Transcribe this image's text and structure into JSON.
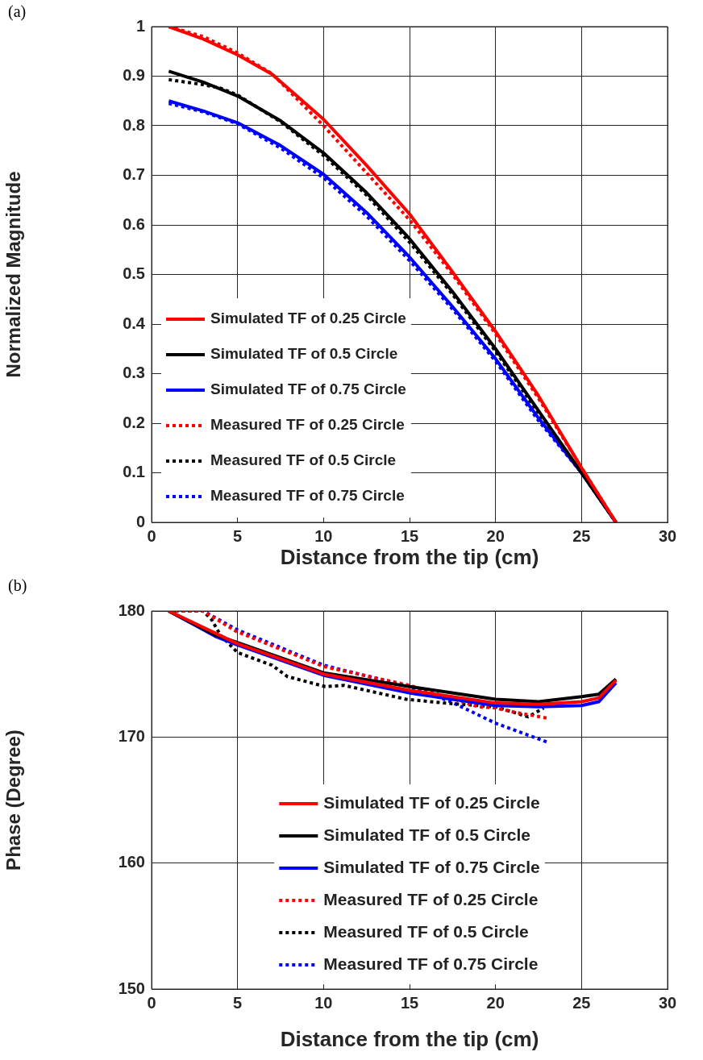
{
  "chart_data": [
    {
      "type": "line",
      "xlabel": "Distance from the tip (cm)",
      "ylabel": "Normalized Magnitude",
      "annotations": [
        "(a)"
      ],
      "xlim": [
        0,
        30
      ],
      "xticks": [
        0,
        5,
        10,
        15,
        20,
        25,
        30
      ],
      "ylim": [
        0,
        1
      ],
      "yticks": [
        0,
        0.1,
        0.2,
        0.3,
        0.4,
        0.5,
        0.6,
        0.7,
        0.8,
        0.9,
        1
      ],
      "grid": true,
      "legend": "bottom left",
      "marker": "none",
      "series": [
        {
          "name": "Simulated TF of 0.25 Circle",
          "color": "#ff0000",
          "line_style": "solid",
          "x": [
            1,
            3,
            5,
            7,
            10,
            12.5,
            15,
            17.5,
            20,
            22.5,
            25,
            27
          ],
          "values": [
            1.0,
            0.975,
            0.943,
            0.904,
            0.813,
            0.72,
            0.622,
            0.505,
            0.385,
            0.255,
            0.11,
            0
          ]
        },
        {
          "name": "Simulated TF of 0.5 Circle",
          "color": "#000000",
          "line_style": "solid",
          "x": [
            1,
            3,
            5,
            7.5,
            10,
            12.5,
            15,
            17.5,
            20,
            22.5,
            25,
            27
          ],
          "values": [
            0.91,
            0.888,
            0.86,
            0.81,
            0.745,
            0.665,
            0.572,
            0.465,
            0.35,
            0.225,
            0.1,
            0
          ]
        },
        {
          "name": "Simulated TF of 0.75 Circle",
          "color": "#0000ff",
          "line_style": "solid",
          "x": [
            1,
            3,
            5,
            7.5,
            10,
            12.5,
            15,
            17.5,
            20,
            22.5,
            25,
            27
          ],
          "values": [
            0.85,
            0.83,
            0.806,
            0.76,
            0.702,
            0.625,
            0.535,
            0.435,
            0.33,
            0.21,
            0.1,
            0
          ]
        },
        {
          "name": "Measured TF of 0.25 Circle",
          "color": "#ff0000",
          "line_style": "dotted",
          "x": [
            1,
            3,
            5,
            7,
            10,
            12.5,
            15,
            17.5,
            20,
            22.5,
            25,
            27
          ],
          "values": [
            1.0,
            0.98,
            0.947,
            0.905,
            0.8,
            0.705,
            0.61,
            0.5,
            0.38,
            0.25,
            0.11,
            0
          ]
        },
        {
          "name": "Measured TF of 0.5 Circle",
          "color": "#000000",
          "line_style": "dotted",
          "x": [
            1,
            3,
            4,
            5,
            7.5,
            10,
            12.5,
            15,
            17.5,
            20,
            22.5,
            25,
            27
          ],
          "values": [
            0.893,
            0.883,
            0.876,
            0.862,
            0.808,
            0.74,
            0.66,
            0.565,
            0.46,
            0.345,
            0.22,
            0.1,
            0
          ]
        },
        {
          "name": "Measured TF of 0.75 Circle",
          "color": "#0000ff",
          "line_style": "dotted",
          "x": [
            1,
            3,
            5,
            7.5,
            10,
            12.5,
            15,
            17.5,
            20,
            22.5,
            25,
            27
          ],
          "values": [
            0.845,
            0.828,
            0.804,
            0.755,
            0.695,
            0.618,
            0.528,
            0.43,
            0.325,
            0.205,
            0.1,
            0
          ]
        }
      ]
    },
    {
      "type": "line",
      "xlabel": "Distance from the tip (cm)",
      "ylabel": "Phase (Degree)",
      "annotations": [
        "(b)"
      ],
      "xlim": [
        0,
        30
      ],
      "xticks": [
        0,
        5,
        10,
        15,
        20,
        25,
        30
      ],
      "ylim": [
        150,
        180
      ],
      "yticks": [
        150,
        160,
        170,
        180
      ],
      "grid": true,
      "legend": "bottom",
      "marker": "none",
      "series": [
        {
          "name": "Simulated TF of 0.25 Circle",
          "color": "#ff0000",
          "line_style": "solid",
          "x": [
            1,
            5,
            10,
            15,
            20,
            22.5,
            25,
            26,
            27
          ],
          "values": [
            180,
            177.4,
            175.0,
            173.7,
            172.7,
            172.6,
            172.8,
            173.1,
            174.5
          ]
        },
        {
          "name": "Simulated TF of 0.5 Circle",
          "color": "#000000",
          "line_style": "solid",
          "x": [
            1,
            3.7,
            5,
            10,
            15,
            20,
            22.5,
            25,
            26,
            27
          ],
          "values": [
            180,
            178.1,
            177.5,
            175.1,
            174.0,
            173.0,
            172.8,
            173.2,
            173.4,
            174.6
          ]
        },
        {
          "name": "Simulated TF of 0.75 Circle",
          "color": "#0000ff",
          "line_style": "solid",
          "x": [
            1,
            3.7,
            5,
            10,
            15,
            20,
            22.5,
            25,
            26,
            27
          ],
          "values": [
            180,
            178.0,
            177.3,
            174.9,
            173.5,
            172.5,
            172.4,
            172.5,
            172.8,
            174.3
          ]
        },
        {
          "name": "Measured TF of 0.25 Circle",
          "color": "#ff0000",
          "line_style": "dotted",
          "x": [
            1,
            3,
            4.9,
            10,
            15,
            19,
            20,
            21,
            23
          ],
          "values": [
            180,
            180,
            178.4,
            175.6,
            174.1,
            172.4,
            172.3,
            172.0,
            171.5
          ]
        },
        {
          "name": "Measured TF of 0.5 Circle",
          "color": "#000000",
          "line_style": "dotted",
          "x": [
            1,
            3,
            3.5,
            4,
            5,
            7,
            7.9,
            10.1,
            11.2,
            14.8,
            17,
            20,
            21.9,
            22.8
          ],
          "values": [
            180,
            180,
            179.3,
            178.1,
            176.7,
            175.7,
            174.8,
            174.0,
            174.1,
            173.0,
            172.7,
            172.4,
            171.6,
            172.3
          ]
        },
        {
          "name": "Measured TF of 0.75 Circle",
          "color": "#0000ff",
          "line_style": "dotted",
          "x": [
            1,
            3,
            5,
            10,
            15,
            17.4,
            20,
            23
          ],
          "values": [
            180,
            180,
            178.5,
            175.7,
            174.0,
            172.8,
            171.1,
            169.6
          ]
        }
      ]
    }
  ]
}
